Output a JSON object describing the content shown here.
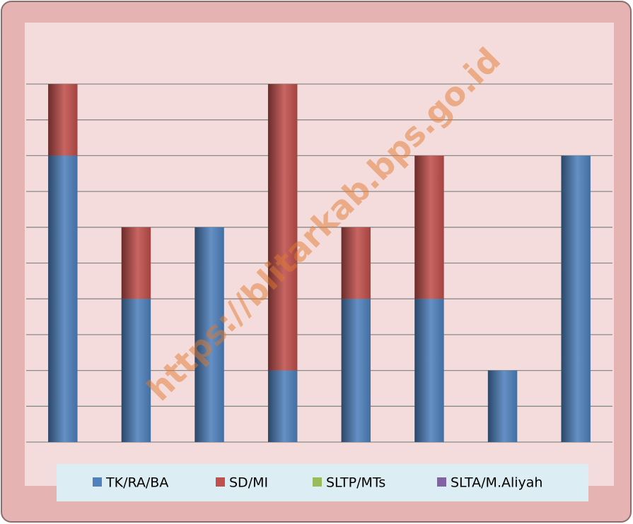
{
  "chart_data": {
    "type": "stacked_bar",
    "categories": [
      null,
      null,
      null,
      null,
      null,
      null,
      null,
      null
    ],
    "series": [
      {
        "name": "TK/RA/BA",
        "color": "#4f81bd",
        "values": [
          8,
          4,
          6,
          2,
          4,
          4,
          2,
          8
        ]
      },
      {
        "name": "SD/MI",
        "color": "#c0504d",
        "values": [
          2,
          2,
          0,
          8,
          2,
          4,
          0,
          0
        ]
      },
      {
        "name": "SLTP/MTs",
        "color": "#9bbb59",
        "values": [
          0,
          0,
          0,
          0,
          0,
          0,
          0,
          0
        ]
      },
      {
        "name": "SLTA/M.Aliyah",
        "color": "#8064a2",
        "values": [
          0,
          0,
          0,
          0,
          0,
          0,
          0,
          0
        ]
      }
    ],
    "ylim": [
      0,
      10
    ],
    "yticks": [
      0,
      1,
      2,
      3,
      4,
      5,
      6,
      7,
      8,
      9,
      10
    ],
    "grid": true,
    "legend": "bottom",
    "watermark": "https://blitarkab.bps.go.id"
  }
}
